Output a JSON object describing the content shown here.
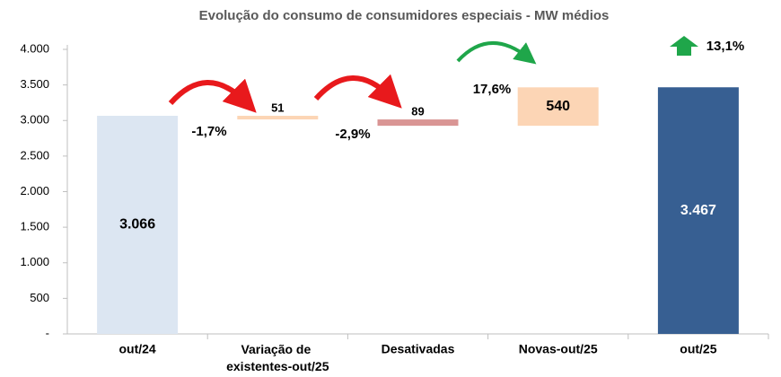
{
  "chart_data": {
    "type": "waterfall",
    "title": "Evolução do consumo de consumidores especiais - MW médios",
    "categories": [
      "out/24",
      "Variação de existentes-out/25",
      "Desativadas",
      "Novas-out/25",
      "out/25"
    ],
    "values": [
      3066,
      51,
      89,
      540,
      3467
    ],
    "value_labels": [
      "3.066",
      "51",
      "89",
      "540",
      "3.467"
    ],
    "measures": [
      "total",
      "decrease",
      "decrease",
      "increase",
      "total"
    ],
    "colors": [
      "#dce6f2",
      "#fcd5b5",
      "#d99594",
      "#fcd5b5",
      "#375f92"
    ],
    "annotations": [
      "-1,7%",
      "-2,9%",
      "17,6%",
      "13,1%"
    ],
    "ylim": [
      0,
      4000
    ],
    "yticks": [
      {
        "value": 0,
        "label": "-"
      },
      500,
      {
        "value": 1000,
        "label": "1.000"
      },
      {
        "value": 1500,
        "label": "1.500"
      },
      {
        "value": 2000,
        "label": "2.000"
      },
      {
        "value": 2500,
        "label": "2.500"
      },
      {
        "value": 3000,
        "label": "3.000"
      },
      {
        "value": 3500,
        "label": "3.500"
      },
      {
        "value": 4000,
        "label": "4.000"
      }
    ],
    "grid": false
  }
}
